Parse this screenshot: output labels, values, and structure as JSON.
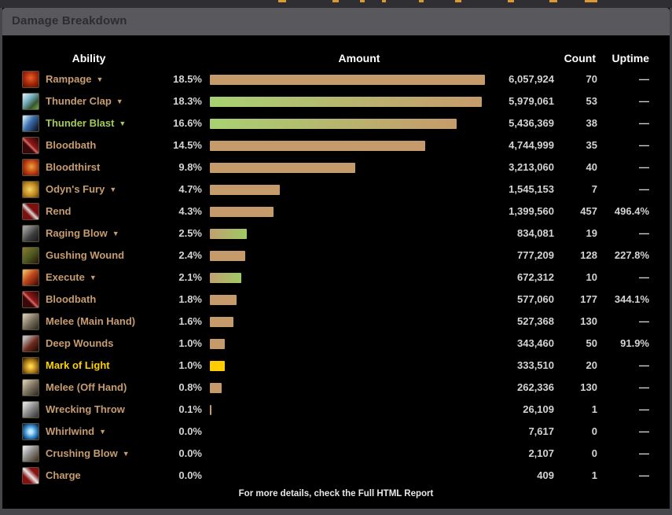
{
  "window": {
    "title": "Damage Breakdown"
  },
  "icons": {
    "dropdown_arrow": "▼"
  },
  "colors": {
    "bar_tan": "#c69b6b",
    "bar_green": "#a8d173",
    "bar_gold": "#ffcd00",
    "name_tan": "#c79c6e",
    "name_green": "#a3cc57",
    "name_gold": "#ffd100",
    "titlebar_bg": "#59595d",
    "panel_bg": "#000000"
  },
  "table": {
    "headers": {
      "ability": "Ability",
      "amount": "Amount",
      "count": "Count",
      "uptime": "Uptime"
    },
    "bar_max_pct": 18.5,
    "rows": [
      {
        "icon": "rampage",
        "name": "Rampage",
        "color": "tan",
        "dropdown": true,
        "pct": 18.5,
        "pct_label": "18.5%",
        "bar": "solid",
        "amount": "6,057,924",
        "count": "70",
        "uptime": "—"
      },
      {
        "icon": "thunder-clap",
        "name": "Thunder Clap",
        "color": "tan",
        "dropdown": true,
        "pct": 18.3,
        "pct_label": "18.3%",
        "bar": "green-tan",
        "amount": "5,979,061",
        "count": "53",
        "uptime": "—"
      },
      {
        "icon": "thunder-blast",
        "name": "Thunder Blast",
        "color": "green",
        "dropdown": true,
        "pct": 16.6,
        "pct_label": "16.6%",
        "bar": "green-tan",
        "amount": "5,436,369",
        "count": "38",
        "uptime": "—"
      },
      {
        "icon": "bloodbath",
        "name": "Bloodbath",
        "color": "tan",
        "dropdown": false,
        "pct": 14.5,
        "pct_label": "14.5%",
        "bar": "solid",
        "amount": "4,744,999",
        "count": "35",
        "uptime": "—"
      },
      {
        "icon": "bloodthirst",
        "name": "Bloodthirst",
        "color": "tan",
        "dropdown": false,
        "pct": 9.8,
        "pct_label": "9.8%",
        "bar": "solid",
        "amount": "3,213,060",
        "count": "40",
        "uptime": "—"
      },
      {
        "icon": "odyns-fury",
        "name": "Odyn's Fury",
        "color": "tan",
        "dropdown": true,
        "pct": 4.7,
        "pct_label": "4.7%",
        "bar": "solid",
        "amount": "1,545,153",
        "count": "7",
        "uptime": "—"
      },
      {
        "icon": "rend",
        "name": "Rend",
        "color": "tan",
        "dropdown": false,
        "pct": 4.3,
        "pct_label": "4.3%",
        "bar": "solid",
        "amount": "1,399,560",
        "count": "457",
        "uptime": "496.4%"
      },
      {
        "icon": "raging-blow",
        "name": "Raging Blow",
        "color": "tan",
        "dropdown": true,
        "pct": 2.5,
        "pct_label": "2.5%",
        "bar": "tan-green",
        "amount": "834,081",
        "count": "19",
        "uptime": "—"
      },
      {
        "icon": "gushing-wound",
        "name": "Gushing Wound",
        "color": "tan",
        "dropdown": false,
        "pct": 2.4,
        "pct_label": "2.4%",
        "bar": "solid",
        "amount": "777,209",
        "count": "128",
        "uptime": "227.8%"
      },
      {
        "icon": "execute",
        "name": "Execute",
        "color": "tan",
        "dropdown": true,
        "pct": 2.1,
        "pct_label": "2.1%",
        "bar": "tan-green",
        "amount": "672,312",
        "count": "10",
        "uptime": "—"
      },
      {
        "icon": "bloodbath",
        "name": "Bloodbath",
        "color": "tan",
        "dropdown": false,
        "pct": 1.8,
        "pct_label": "1.8%",
        "bar": "solid",
        "amount": "577,060",
        "count": "177",
        "uptime": "344.1%"
      },
      {
        "icon": "melee-main-hand",
        "name": "Melee (Main Hand)",
        "color": "tan",
        "dropdown": false,
        "pct": 1.6,
        "pct_label": "1.6%",
        "bar": "solid",
        "amount": "527,368",
        "count": "130",
        "uptime": "—"
      },
      {
        "icon": "deep-wounds",
        "name": "Deep Wounds",
        "color": "tan",
        "dropdown": false,
        "pct": 1.0,
        "pct_label": "1.0%",
        "bar": "solid",
        "amount": "343,460",
        "count": "50",
        "uptime": "91.9%"
      },
      {
        "icon": "mark-of-light",
        "name": "Mark of Light",
        "color": "gold",
        "dropdown": false,
        "pct": 1.0,
        "pct_label": "1.0%",
        "bar": "gold",
        "amount": "333,510",
        "count": "20",
        "uptime": "—"
      },
      {
        "icon": "melee-off-hand",
        "name": "Melee (Off Hand)",
        "color": "tan",
        "dropdown": false,
        "pct": 0.8,
        "pct_label": "0.8%",
        "bar": "solid",
        "amount": "262,336",
        "count": "130",
        "uptime": "—"
      },
      {
        "icon": "wrecking-throw",
        "name": "Wrecking Throw",
        "color": "tan",
        "dropdown": false,
        "pct": 0.1,
        "pct_label": "0.1%",
        "bar": "solid",
        "amount": "26,109",
        "count": "1",
        "uptime": "—"
      },
      {
        "icon": "whirlwind",
        "name": "Whirlwind",
        "color": "tan",
        "dropdown": true,
        "pct": 0.0,
        "pct_label": "0.0%",
        "bar": "none",
        "amount": "7,617",
        "count": "0",
        "uptime": "—"
      },
      {
        "icon": "crushing-blow",
        "name": "Crushing Blow",
        "color": "tan",
        "dropdown": true,
        "pct": 0.0,
        "pct_label": "0.0%",
        "bar": "none",
        "amount": "2,107",
        "count": "0",
        "uptime": "—"
      },
      {
        "icon": "charge",
        "name": "Charge",
        "color": "tan",
        "dropdown": false,
        "pct": 0.0,
        "pct_label": "0.0%",
        "bar": "none",
        "amount": "409",
        "count": "1",
        "uptime": "—"
      }
    ]
  },
  "footer": {
    "note": "For more details, check the Full HTML Report"
  }
}
